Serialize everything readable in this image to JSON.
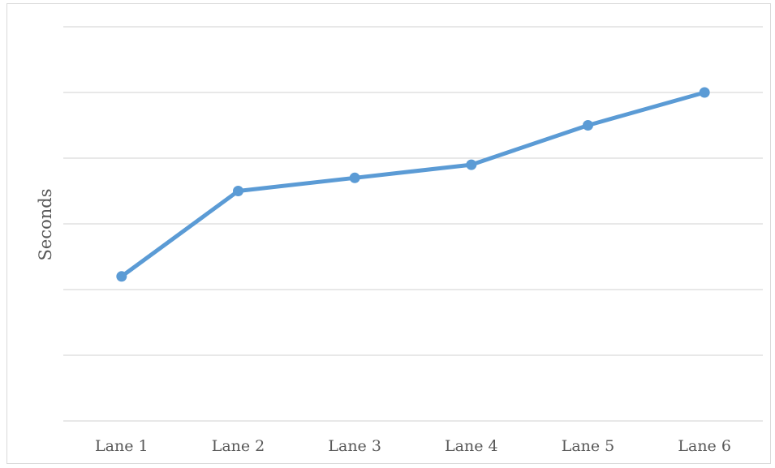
{
  "chart_data": {
    "type": "line",
    "title": "",
    "xlabel": "",
    "ylabel": "Seconds",
    "categories": [
      "Lane 1",
      "Lane 2",
      "Lane 3",
      "Lane 4",
      "Lane 5",
      "Lane 6"
    ],
    "series": [
      {
        "values": [
          2.2,
          3.5,
          3.7,
          3.9,
          4.5,
          5.0
        ]
      }
    ],
    "ylim": [
      0,
      6
    ],
    "grid": true,
    "legend": "none",
    "y_tick_labels_shown": false,
    "colors": {
      "series": "#5b9bd5",
      "grid": "#d9d9d9",
      "text": "#595959",
      "frame": "#d9d9d9"
    }
  }
}
